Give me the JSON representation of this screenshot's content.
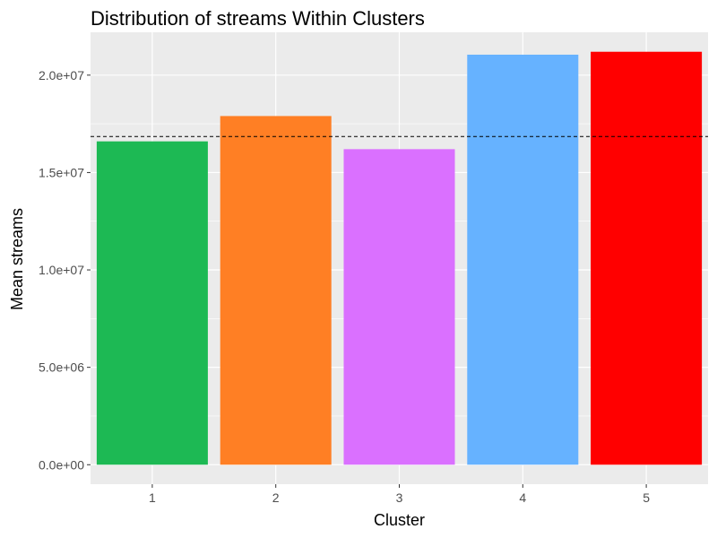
{
  "chart_data": {
    "type": "bar",
    "title": "Distribution of streams Within Clusters",
    "xlabel": "Cluster",
    "ylabel": "Mean streams",
    "categories": [
      "1",
      "2",
      "3",
      "4",
      "5"
    ],
    "values": [
      16600000,
      17900000,
      16200000,
      21050000,
      21200000
    ],
    "bar_colors": [
      "#1DB954",
      "#FF7F24",
      "#DA70FF",
      "#66B2FF",
      "#FF0000"
    ],
    "reference_line": 16850000,
    "ylim": [
      -1000000,
      22200000
    ],
    "yticks": [
      0,
      5000000,
      10000000,
      15000000,
      20000000
    ],
    "ytick_labels": [
      "0.0e+00",
      "5.0e+06",
      "1.0e+07",
      "1.5e+07",
      "2.0e+07"
    ],
    "grid": true,
    "legend": "none",
    "panel_background": "#EBEBEB",
    "grid_color": "#FFFFFF"
  }
}
